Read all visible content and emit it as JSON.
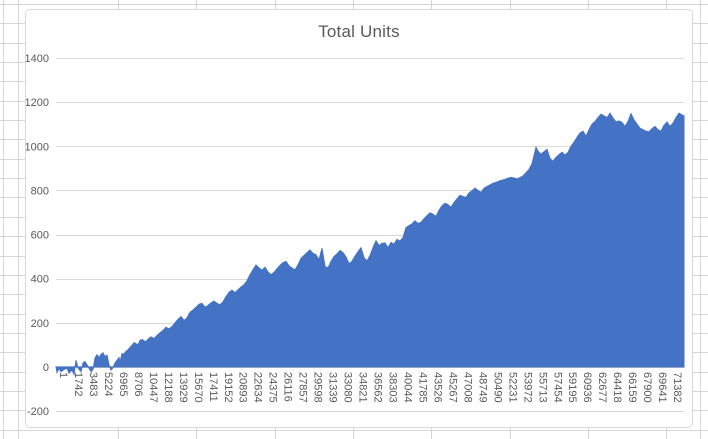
{
  "chart_data": {
    "type": "area",
    "title": "Total Units",
    "legend": "none",
    "grid": true,
    "ylim": [
      -200,
      1400
    ],
    "y_tick_step": 200,
    "y_tick_labels": [
      "1400",
      "1200",
      "1000",
      "800",
      "600",
      "400",
      "200",
      "0",
      "-200"
    ],
    "x_tick_labels": [
      "1",
      "1742",
      "3483",
      "5224",
      "6965",
      "8706",
      "10447",
      "12188",
      "13929",
      "15670",
      "17411",
      "19152",
      "20893",
      "22634",
      "24375",
      "26116",
      "27857",
      "29598",
      "31339",
      "33080",
      "34821",
      "36562",
      "38303",
      "40044",
      "41785",
      "43526",
      "45267",
      "47008",
      "48749",
      "50490",
      "52231",
      "53972",
      "55713",
      "57454",
      "59195",
      "60936",
      "62677",
      "64418",
      "66159",
      "67900",
      "69641",
      "71382"
    ],
    "x_tick_interval": 1741,
    "x_max": 73000,
    "colors": {
      "area": "#4472C4",
      "plot_gridline": "#D9D9D9",
      "axis_line": "#BFBFBF",
      "text": "#595959",
      "chart_border": "#D9D9D9",
      "sheet_gridline": "#D6D6D6"
    },
    "points": [
      [
        0,
        2
      ],
      [
        116,
        -25
      ],
      [
        349,
        -8
      ],
      [
        581,
        -22
      ],
      [
        930,
        -12
      ],
      [
        1279,
        -6
      ],
      [
        1511,
        -28
      ],
      [
        1860,
        -14
      ],
      [
        2092,
        -35
      ],
      [
        2325,
        30
      ],
      [
        2557,
        -5
      ],
      [
        2906,
        -22
      ],
      [
        3139,
        18
      ],
      [
        3371,
        24
      ],
      [
        3603,
        10
      ],
      [
        3836,
        -6
      ],
      [
        4068,
        -22
      ],
      [
        4301,
        -12
      ],
      [
        4533,
        40
      ],
      [
        4766,
        55
      ],
      [
        4998,
        42
      ],
      [
        5231,
        56
      ],
      [
        5463,
        64
      ],
      [
        5696,
        46
      ],
      [
        5928,
        54
      ],
      [
        6161,
        10
      ],
      [
        6393,
        -14
      ],
      [
        6625,
        -4
      ],
      [
        6858,
        18
      ],
      [
        7090,
        30
      ],
      [
        7323,
        42
      ],
      [
        7439,
        22
      ],
      [
        7672,
        60
      ],
      [
        7904,
        58
      ],
      [
        8137,
        70
      ],
      [
        8369,
        78
      ],
      [
        8602,
        88
      ],
      [
        8834,
        98
      ],
      [
        9066,
        110
      ],
      [
        9299,
        105
      ],
      [
        9531,
        100
      ],
      [
        9764,
        120
      ],
      [
        9996,
        124
      ],
      [
        10229,
        118
      ],
      [
        10461,
        114
      ],
      [
        10694,
        126
      ],
      [
        11042,
        136
      ],
      [
        11391,
        128
      ],
      [
        11740,
        142
      ],
      [
        12088,
        155
      ],
      [
        12437,
        165
      ],
      [
        12786,
        180
      ],
      [
        13135,
        172
      ],
      [
        13483,
        182
      ],
      [
        13832,
        200
      ],
      [
        14181,
        215
      ],
      [
        14529,
        228
      ],
      [
        14878,
        210
      ],
      [
        15227,
        222
      ],
      [
        15576,
        248
      ],
      [
        15924,
        258
      ],
      [
        16273,
        270
      ],
      [
        16622,
        284
      ],
      [
        16970,
        288
      ],
      [
        17319,
        270
      ],
      [
        17668,
        278
      ],
      [
        18017,
        290
      ],
      [
        18365,
        298
      ],
      [
        18714,
        288
      ],
      [
        19063,
        282
      ],
      [
        19411,
        295
      ],
      [
        19760,
        318
      ],
      [
        20109,
        338
      ],
      [
        20458,
        348
      ],
      [
        20806,
        336
      ],
      [
        21155,
        350
      ],
      [
        21504,
        362
      ],
      [
        21852,
        372
      ],
      [
        22201,
        390
      ],
      [
        22550,
        418
      ],
      [
        22899,
        440
      ],
      [
        23247,
        462
      ],
      [
        23596,
        448
      ],
      [
        23945,
        438
      ],
      [
        24293,
        452
      ],
      [
        24642,
        430
      ],
      [
        24991,
        418
      ],
      [
        25340,
        428
      ],
      [
        25688,
        445
      ],
      [
        26037,
        460
      ],
      [
        26386,
        472
      ],
      [
        26734,
        478
      ],
      [
        27083,
        458
      ],
      [
        27432,
        448
      ],
      [
        27781,
        440
      ],
      [
        28129,
        462
      ],
      [
        28478,
        492
      ],
      [
        28827,
        505
      ],
      [
        29175,
        518
      ],
      [
        29524,
        530
      ],
      [
        29873,
        515
      ],
      [
        30222,
        508
      ],
      [
        30570,
        486
      ],
      [
        30919,
        538
      ],
      [
        31268,
        455
      ],
      [
        31616,
        448
      ],
      [
        31965,
        478
      ],
      [
        32314,
        500
      ],
      [
        32663,
        512
      ],
      [
        33011,
        528
      ],
      [
        33360,
        518
      ],
      [
        33709,
        498
      ],
      [
        34057,
        468
      ],
      [
        34406,
        478
      ],
      [
        34755,
        502
      ],
      [
        35104,
        522
      ],
      [
        35452,
        540
      ],
      [
        35801,
        495
      ],
      [
        36150,
        480
      ],
      [
        36498,
        505
      ],
      [
        36847,
        540
      ],
      [
        37196,
        572
      ],
      [
        37545,
        550
      ],
      [
        37893,
        560
      ],
      [
        38242,
        562
      ],
      [
        38591,
        540
      ],
      [
        38939,
        564
      ],
      [
        39288,
        556
      ],
      [
        39637,
        578
      ],
      [
        39986,
        570
      ],
      [
        40334,
        586
      ],
      [
        40683,
        632
      ],
      [
        41032,
        640
      ],
      [
        41380,
        648
      ],
      [
        41729,
        662
      ],
      [
        42078,
        650
      ],
      [
        42427,
        655
      ],
      [
        42775,
        672
      ],
      [
        43124,
        685
      ],
      [
        43473,
        698
      ],
      [
        43821,
        692
      ],
      [
        44170,
        682
      ],
      [
        44519,
        710
      ],
      [
        44868,
        730
      ],
      [
        45216,
        742
      ],
      [
        45565,
        735
      ],
      [
        45914,
        723
      ],
      [
        46262,
        745
      ],
      [
        46611,
        762
      ],
      [
        46960,
        778
      ],
      [
        47309,
        772
      ],
      [
        47657,
        768
      ],
      [
        48006,
        788
      ],
      [
        48355,
        798
      ],
      [
        48703,
        810
      ],
      [
        49052,
        800
      ],
      [
        49401,
        791
      ],
      [
        49750,
        810
      ],
      [
        50098,
        818
      ],
      [
        50447,
        825
      ],
      [
        50796,
        832
      ],
      [
        51144,
        836
      ],
      [
        51493,
        842
      ],
      [
        51842,
        846
      ],
      [
        52191,
        850
      ],
      [
        52539,
        855
      ],
      [
        52888,
        859
      ],
      [
        53237,
        856
      ],
      [
        53585,
        852
      ],
      [
        53934,
        858
      ],
      [
        54283,
        865
      ],
      [
        54632,
        880
      ],
      [
        54980,
        895
      ],
      [
        55329,
        920
      ],
      [
        55562,
        958
      ],
      [
        55794,
        995
      ],
      [
        56027,
        978
      ],
      [
        56375,
        964
      ],
      [
        56724,
        975
      ],
      [
        57073,
        986
      ],
      [
        57421,
        945
      ],
      [
        57770,
        932
      ],
      [
        58119,
        950
      ],
      [
        58468,
        962
      ],
      [
        58816,
        973
      ],
      [
        59165,
        960
      ],
      [
        59514,
        972
      ],
      [
        59862,
        1000
      ],
      [
        60211,
        1018
      ],
      [
        60560,
        1040
      ],
      [
        60909,
        1060
      ],
      [
        61257,
        1068
      ],
      [
        61606,
        1045
      ],
      [
        61955,
        1075
      ],
      [
        62303,
        1100
      ],
      [
        62652,
        1112
      ],
      [
        63001,
        1130
      ],
      [
        63350,
        1145
      ],
      [
        63698,
        1138
      ],
      [
        64047,
        1130
      ],
      [
        64396,
        1150
      ],
      [
        64744,
        1128
      ],
      [
        65093,
        1110
      ],
      [
        65442,
        1115
      ],
      [
        65791,
        1108
      ],
      [
        66139,
        1090
      ],
      [
        66488,
        1112
      ],
      [
        66837,
        1148
      ],
      [
        67185,
        1120
      ],
      [
        67534,
        1100
      ],
      [
        67883,
        1082
      ],
      [
        68232,
        1075
      ],
      [
        68580,
        1068
      ],
      [
        68929,
        1065
      ],
      [
        69278,
        1080
      ],
      [
        69626,
        1090
      ],
      [
        69975,
        1075
      ],
      [
        70324,
        1068
      ],
      [
        70673,
        1095
      ],
      [
        71021,
        1110
      ],
      [
        71370,
        1090
      ],
      [
        71719,
        1105
      ],
      [
        72067,
        1130
      ],
      [
        72416,
        1150
      ],
      [
        72765,
        1142
      ],
      [
        73000,
        1138
      ]
    ]
  }
}
